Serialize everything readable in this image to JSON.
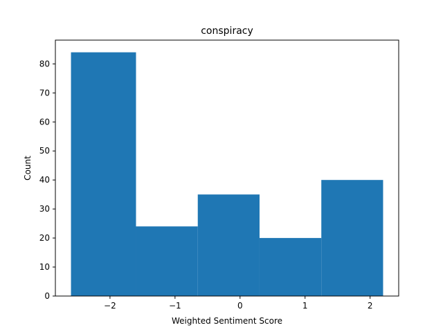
{
  "chart_data": {
    "type": "bar",
    "title": "conspiracy",
    "xlabel": "Weighted Sentiment Score",
    "ylabel": "Count",
    "bins": [
      {
        "start": -2.6,
        "end": -1.6,
        "value": 84
      },
      {
        "start": -1.6,
        "end": -0.65,
        "value": 24
      },
      {
        "start": -0.65,
        "end": 0.3,
        "value": 35
      },
      {
        "start": 0.3,
        "end": 1.25,
        "value": 20
      },
      {
        "start": 1.25,
        "end": 2.2,
        "value": 40
      }
    ],
    "xlim": [
      -2.84,
      2.44
    ],
    "ylim": [
      0,
      88.2
    ],
    "xticks": [
      {
        "value": -2,
        "label": "−2"
      },
      {
        "value": -1,
        "label": "−1"
      },
      {
        "value": 0,
        "label": "0"
      },
      {
        "value": 1,
        "label": "1"
      },
      {
        "value": 2,
        "label": "2"
      }
    ],
    "yticks": [
      {
        "value": 0,
        "label": "0"
      },
      {
        "value": 10,
        "label": "10"
      },
      {
        "value": 20,
        "label": "20"
      },
      {
        "value": 30,
        "label": "30"
      },
      {
        "value": 40,
        "label": "40"
      },
      {
        "value": 50,
        "label": "50"
      },
      {
        "value": 60,
        "label": "60"
      },
      {
        "value": 70,
        "label": "70"
      },
      {
        "value": 80,
        "label": "80"
      }
    ],
    "bar_color": "#1f77b4",
    "grid": false
  }
}
